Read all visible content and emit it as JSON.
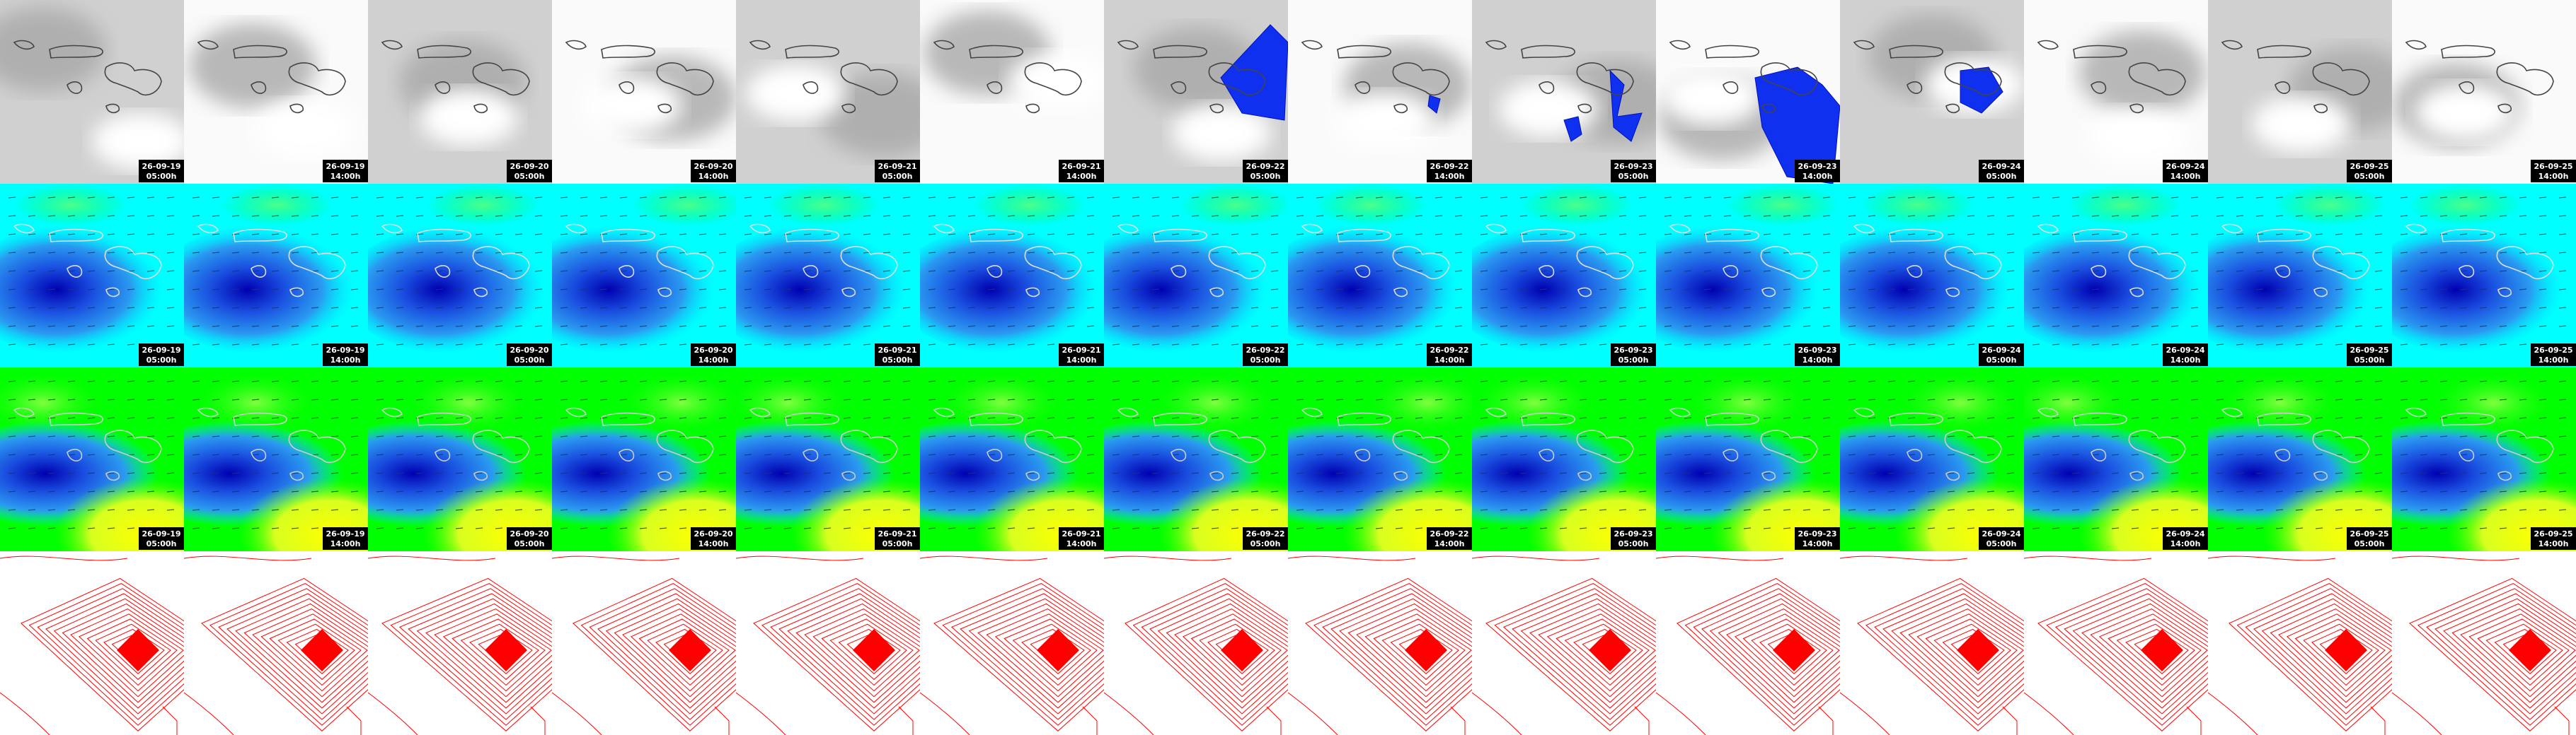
{
  "timestamps": [
    {
      "date": "26-09-19",
      "time": "05:00h"
    },
    {
      "date": "26-09-19",
      "time": "14:00h"
    },
    {
      "date": "26-09-20",
      "time": "05:00h"
    },
    {
      "date": "26-09-20",
      "time": "14:00h"
    },
    {
      "date": "26-09-21",
      "time": "05:00h"
    },
    {
      "date": "26-09-21",
      "time": "14:00h"
    },
    {
      "date": "26-09-22",
      "time": "05:00h"
    },
    {
      "date": "26-09-22",
      "time": "14:00h"
    },
    {
      "date": "26-09-23",
      "time": "05:00h"
    },
    {
      "date": "26-09-23",
      "time": "14:00h"
    },
    {
      "date": "26-09-24",
      "time": "05:00h"
    },
    {
      "date": "26-09-24",
      "time": "14:00h"
    },
    {
      "date": "26-09-25",
      "time": "05:00h"
    },
    {
      "date": "26-09-25",
      "time": "14:00h"
    }
  ]
}
